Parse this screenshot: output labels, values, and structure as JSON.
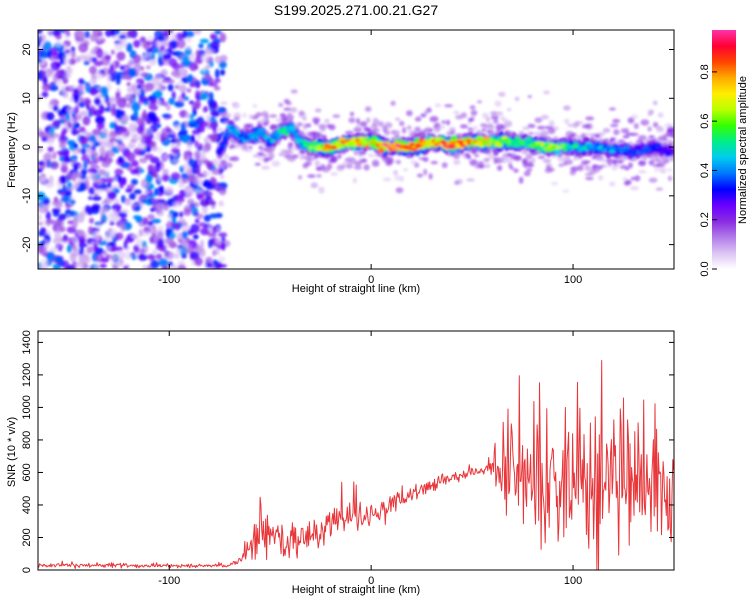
{
  "title": "S199.2025.271.00.21.G27",
  "chart_data": [
    {
      "type": "heatmap",
      "xlabel": "Height of straight line (km)",
      "ylabel": "Frequency (Hz)",
      "xlim": [
        -165,
        150
      ],
      "ylim": [
        -25,
        24
      ],
      "xticks": [
        -100,
        0,
        100
      ],
      "yticks": [
        -20,
        -10,
        0,
        10,
        20
      ],
      "colorbar": {
        "label": "Normalized spectral amplitude",
        "ticks": [
          0.0,
          0.2,
          0.4,
          0.6,
          0.8
        ],
        "range": [
          0,
          0.97
        ],
        "colors": [
          "#ffffff",
          "#dcc4f4",
          "#b07be8",
          "#8a2be2",
          "#6a00ff",
          "#0000ff",
          "#0077ff",
          "#00ccee",
          "#00ee88",
          "#33ff00",
          "#bbff00",
          "#ffee00",
          "#ffaa00",
          "#ff4400",
          "#ff0033",
          "#ff33aa"
        ]
      },
      "ridge_km": [
        -75,
        -70,
        -65,
        -60,
        -55,
        -50,
        -45,
        -40,
        -35,
        -30,
        -20,
        -10,
        0,
        10,
        20,
        30,
        40,
        50,
        60,
        70,
        80,
        90,
        100,
        110,
        120,
        130,
        140,
        150
      ],
      "ridge_hz": [
        -1,
        4,
        2,
        2,
        3,
        1,
        3,
        4,
        1,
        0,
        0,
        1,
        1,
        0,
        0,
        1,
        0.5,
        1,
        1,
        1,
        0.5,
        0,
        0,
        0,
        -0.5,
        -1,
        0,
        -1
      ],
      "ridge_amp": [
        0.35,
        0.45,
        0.4,
        0.4,
        0.45,
        0.4,
        0.5,
        0.45,
        0.45,
        0.6,
        0.75,
        0.8,
        0.7,
        0.9,
        0.8,
        0.75,
        0.85,
        0.75,
        0.65,
        0.6,
        0.55,
        0.65,
        0.5,
        0.45,
        0.4,
        0.35,
        0.35,
        0.3
      ]
    },
    {
      "type": "line",
      "xlabel": "Height of straight line (km)",
      "ylabel": "SNR (10 * v/v)",
      "xlim": [
        -165,
        150
      ],
      "ylim": [
        0,
        1470
      ],
      "xticks": [
        -100,
        0,
        100
      ],
      "yticks": [
        0,
        200,
        400,
        600,
        800,
        1000,
        1200,
        1400
      ],
      "line_color": "#e8363a",
      "env_km": [
        -165,
        -70,
        -60,
        -55,
        -50,
        -40,
        -30,
        -20,
        -10,
        0,
        10,
        20,
        30,
        40,
        50,
        55,
        60,
        65,
        70,
        80,
        90,
        100,
        110,
        120,
        130,
        140,
        150
      ],
      "env_mean": [
        30,
        25,
        120,
        250,
        180,
        170,
        220,
        250,
        300,
        350,
        400,
        460,
        520,
        570,
        600,
        610,
        620,
        600,
        560,
        560,
        560,
        560,
        560,
        560,
        550,
        540,
        500
      ],
      "env_spread": [
        12,
        10,
        80,
        180,
        100,
        90,
        110,
        110,
        100,
        80,
        60,
        50,
        40,
        30,
        25,
        25,
        60,
        250,
        320,
        380,
        400,
        420,
        450,
        420,
        420,
        380,
        300
      ]
    }
  ]
}
